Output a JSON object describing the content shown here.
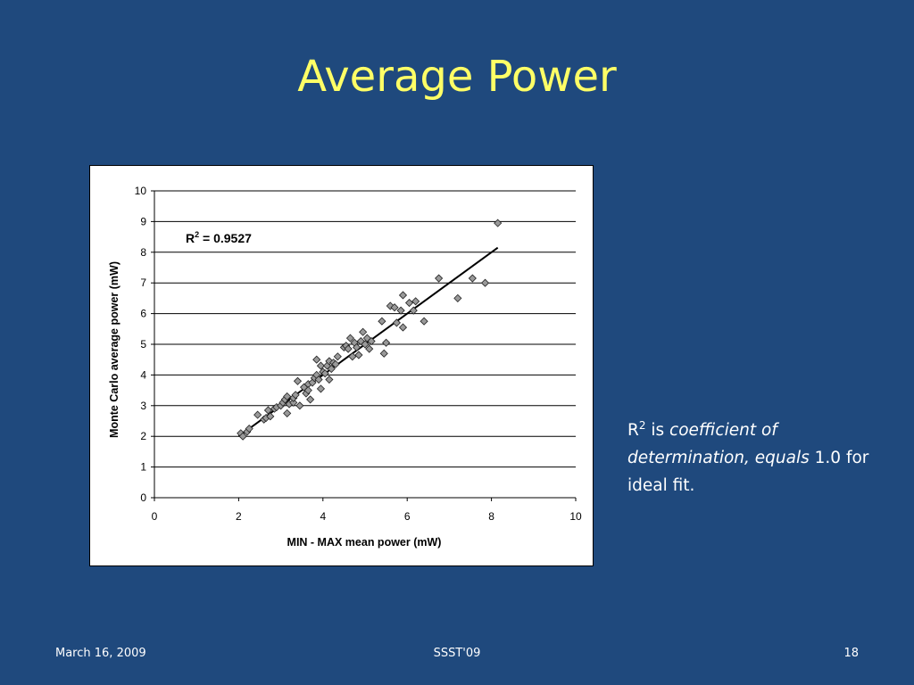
{
  "slide": {
    "title": "Average Power",
    "footer_left": "March 16, 2009",
    "footer_center": "SSST'09",
    "footer_right": "18"
  },
  "note": {
    "r": "R",
    "r_sup": "2",
    "is": " is ",
    "italic1": "coefficient of determination, equals",
    "rest": " 1.0 for ideal fit."
  },
  "chart_data": {
    "type": "scatter",
    "xlabel": "MIN - MAX mean power (mW)",
    "ylabel": "Monte Carlo average power (mW)",
    "xlim": [
      0,
      10
    ],
    "ylim": [
      0,
      10
    ],
    "xticks": [
      "0",
      "2",
      "4",
      "6",
      "8",
      "10"
    ],
    "yticks": [
      "0",
      "1",
      "2",
      "3",
      "4",
      "5",
      "6",
      "7",
      "8",
      "9",
      "10"
    ],
    "grid": "horizontal",
    "annotation": {
      "r": "R",
      "sup": "2",
      "text": " = 0.9527"
    },
    "trendline": {
      "x": [
        2.0,
        8.15
      ],
      "y": [
        2.0,
        8.15
      ]
    },
    "marker_color": "#999999",
    "points": [
      [
        2.05,
        2.1
      ],
      [
        2.1,
        2.0
      ],
      [
        2.2,
        2.15
      ],
      [
        2.25,
        2.25
      ],
      [
        2.45,
        2.7
      ],
      [
        2.6,
        2.55
      ],
      [
        2.65,
        2.6
      ],
      [
        2.7,
        2.85
      ],
      [
        2.75,
        2.65
      ],
      [
        2.85,
        2.9
      ],
      [
        2.9,
        2.95
      ],
      [
        3.0,
        3.0
      ],
      [
        3.05,
        3.1
      ],
      [
        3.1,
        3.2
      ],
      [
        3.15,
        3.3
      ],
      [
        3.15,
        2.75
      ],
      [
        3.2,
        3.05
      ],
      [
        3.3,
        3.1
      ],
      [
        3.3,
        3.25
      ],
      [
        3.35,
        3.35
      ],
      [
        3.4,
        3.8
      ],
      [
        3.45,
        3.0
      ],
      [
        3.55,
        3.6
      ],
      [
        3.6,
        3.4
      ],
      [
        3.65,
        3.7
      ],
      [
        3.65,
        3.5
      ],
      [
        3.7,
        3.2
      ],
      [
        3.75,
        3.75
      ],
      [
        3.8,
        3.9
      ],
      [
        3.85,
        4.0
      ],
      [
        3.85,
        4.5
      ],
      [
        3.9,
        3.85
      ],
      [
        3.95,
        3.55
      ],
      [
        3.95,
        4.3
      ],
      [
        4.0,
        4.1
      ],
      [
        4.05,
        4.05
      ],
      [
        4.1,
        4.3
      ],
      [
        4.15,
        3.85
      ],
      [
        4.15,
        4.45
      ],
      [
        4.2,
        4.2
      ],
      [
        4.25,
        4.4
      ],
      [
        4.3,
        4.35
      ],
      [
        4.35,
        4.6
      ],
      [
        4.5,
        4.9
      ],
      [
        4.55,
        4.95
      ],
      [
        4.6,
        4.85
      ],
      [
        4.65,
        5.2
      ],
      [
        4.7,
        4.6
      ],
      [
        4.75,
        5.05
      ],
      [
        4.8,
        4.9
      ],
      [
        4.85,
        4.65
      ],
      [
        4.9,
        5.1
      ],
      [
        4.95,
        5.4
      ],
      [
        5.0,
        5.0
      ],
      [
        5.05,
        5.2
      ],
      [
        5.1,
        4.85
      ],
      [
        5.15,
        5.1
      ],
      [
        5.4,
        5.75
      ],
      [
        5.45,
        4.7
      ],
      [
        5.5,
        5.05
      ],
      [
        5.6,
        6.25
      ],
      [
        5.7,
        6.2
      ],
      [
        5.75,
        5.7
      ],
      [
        5.85,
        6.1
      ],
      [
        5.9,
        5.55
      ],
      [
        5.9,
        6.6
      ],
      [
        6.05,
        6.35
      ],
      [
        6.15,
        6.1
      ],
      [
        6.2,
        6.4
      ],
      [
        6.4,
        5.75
      ],
      [
        6.75,
        7.15
      ],
      [
        7.2,
        6.5
      ],
      [
        7.55,
        7.15
      ],
      [
        7.85,
        7.0
      ],
      [
        8.15,
        8.95
      ]
    ]
  }
}
